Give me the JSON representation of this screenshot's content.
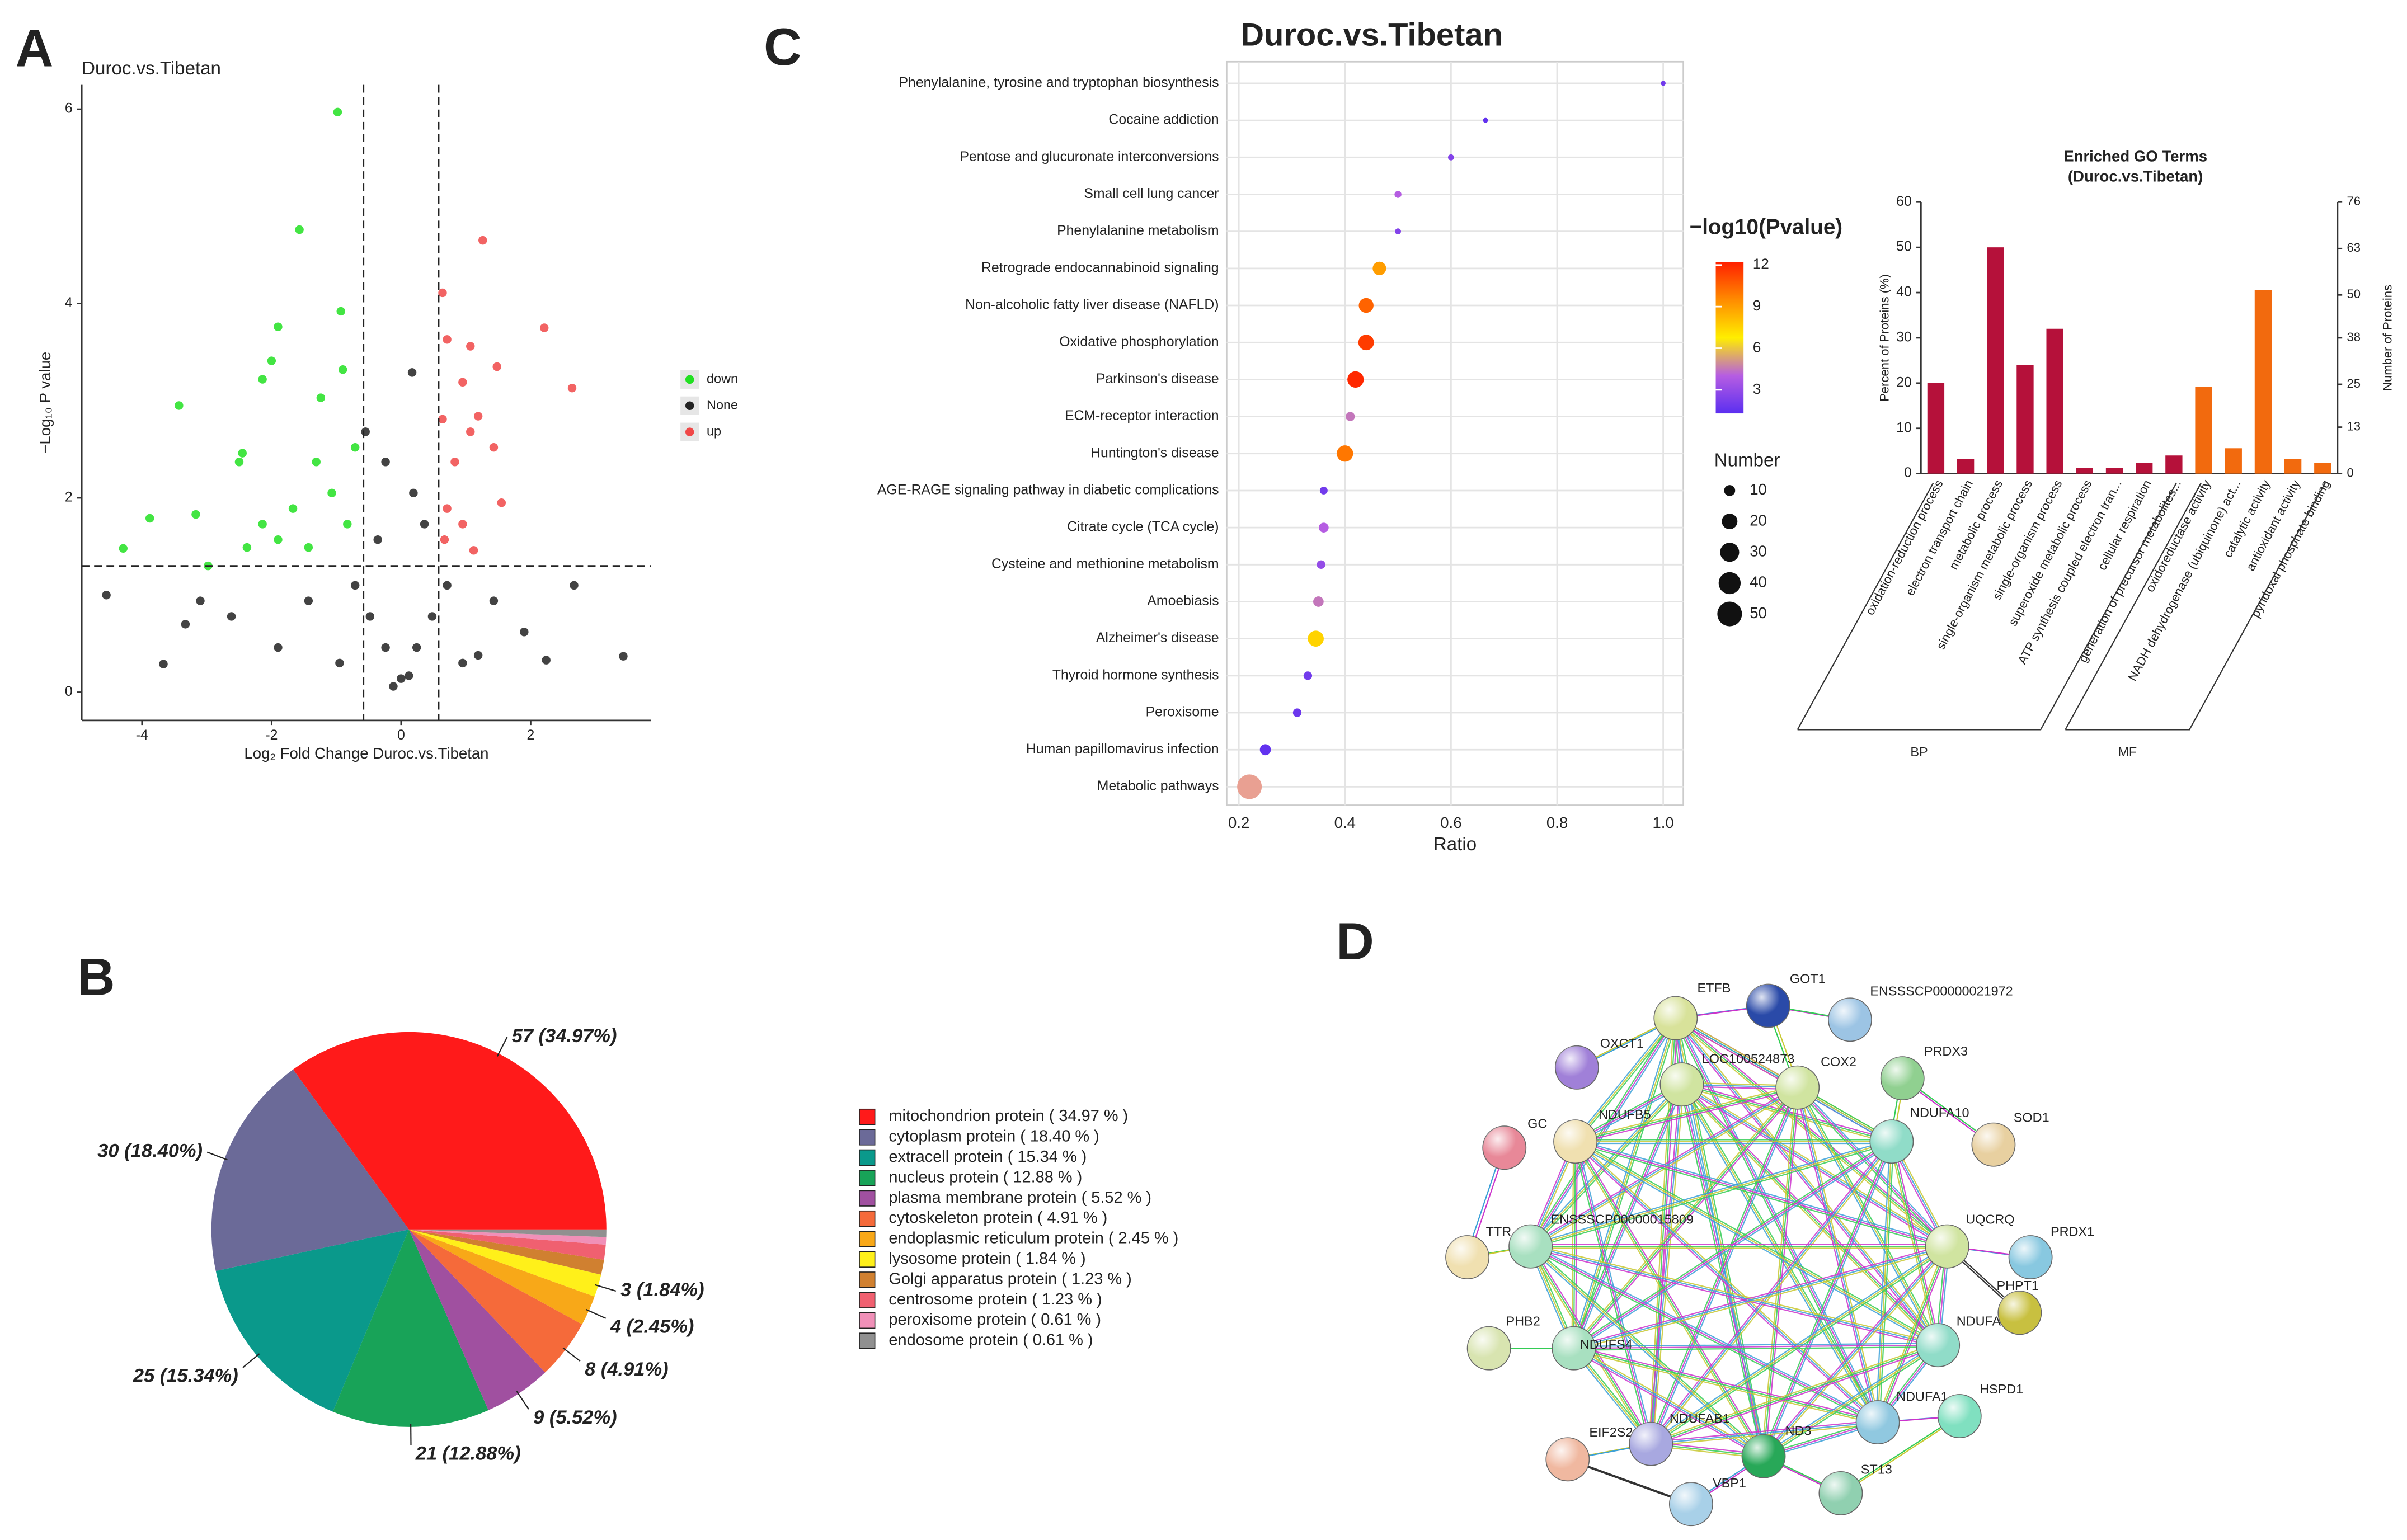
{
  "chart_data": [
    {
      "panel": "A",
      "type": "scatter",
      "title": "Duroc.vs.Tibetan",
      "x_label": "Log₂ Fold Change Duroc.vs.Tibetan",
      "y_label": "−Log₁₀ P value",
      "xlim": [
        -4.93,
        3.86
      ],
      "ylim": [
        -0.29,
        6.25
      ],
      "xticks": [
        -4,
        -2,
        0,
        2
      ],
      "yticks": [
        0,
        2,
        4,
        6
      ],
      "threshold_x": [
        -0.58,
        0.58
      ],
      "threshold_y": 1.3,
      "legend": "right",
      "series": [
        {
          "name": "down",
          "color": "#22e022",
          "x": [
            -0.98,
            -1.57,
            -1.9,
            -0.93,
            -3.43,
            -2.14,
            -2.0,
            -3.88,
            -4.29,
            -3.17,
            -2.45,
            -2.5,
            -2.98,
            -1.31,
            -0.71,
            -1.07,
            -1.67,
            -1.9,
            -1.43,
            -0.83,
            -2.14,
            -2.38,
            -1.24,
            -0.9
          ],
          "values": [
            5.97,
            4.76,
            3.76,
            3.92,
            2.95,
            3.22,
            3.41,
            1.79,
            1.48,
            1.83,
            2.46,
            2.37,
            1.3,
            2.37,
            2.52,
            2.05,
            1.89,
            1.57,
            1.49,
            1.73,
            1.73,
            1.49,
            3.03,
            3.32
          ]
        },
        {
          "name": "None",
          "color": "#222222",
          "x": [
            -4.55,
            -3.67,
            3.43,
            2.24,
            0.17,
            -0.55,
            0,
            -0.12,
            0.12,
            -0.24,
            0.24,
            -0.48,
            0.48,
            -0.71,
            0.71,
            -1.43,
            1.43,
            -2.62,
            1.9,
            -3.33,
            -1.9,
            1.19,
            -0.36,
            0.36,
            0.19,
            -0.24,
            -3.1,
            2.67,
            -0.95,
            0.95
          ],
          "values": [
            1.0,
            0.29,
            0.37,
            0.33,
            3.29,
            2.68,
            0.14,
            0.06,
            0.17,
            0.46,
            0.46,
            0.78,
            0.78,
            1.1,
            1.1,
            0.94,
            0.94,
            0.78,
            0.62,
            0.7,
            0.46,
            0.38,
            1.57,
            1.73,
            2.05,
            2.37,
            0.94,
            1.1,
            0.3,
            0.3
          ]
        },
        {
          "name": "up",
          "color": "#f04848",
          "x": [
            1.26,
            0.64,
            2.21,
            2.64,
            0.71,
            1.07,
            1.48,
            0.95,
            1.19,
            0.64,
            0.83,
            1.55,
            0.71,
            1.12,
            0.95,
            1.43,
            0.67,
            1.07
          ],
          "values": [
            4.65,
            4.11,
            3.75,
            3.13,
            3.63,
            3.56,
            3.35,
            3.19,
            2.84,
            2.81,
            2.37,
            1.95,
            1.89,
            1.46,
            1.73,
            2.52,
            1.57,
            2.68
          ]
        }
      ]
    },
    {
      "panel": "C",
      "type": "dot",
      "title": "Duroc.vs.Tibetan",
      "x_label": "Ratio",
      "categories": [
        "Phenylalanine, tyrosine and tryptophan biosynthesis",
        "Cocaine addiction",
        "Pentose and glucuronate interconversions",
        "Small cell lung cancer",
        "Phenylalanine metabolism",
        "Retrograde endocannabinoid signaling",
        "Non-alcoholic fatty liver disease (NAFLD)",
        "Oxidative phosphorylation",
        "Parkinson's disease",
        "ECM-receptor interaction",
        "Huntington's disease",
        "AGE-RAGE signaling pathway in diabetic complications",
        "Citrate cycle (TCA cycle)",
        "Cysteine and methionine metabolism",
        "Amoebiasis",
        "Alzheimer's disease",
        "Thyroid hormone synthesis",
        "Peroxisome",
        "Human papillomavirus infection",
        "Metabolic pathways"
      ],
      "values": [
        1.0,
        0.665,
        0.6,
        0.5,
        0.5,
        0.465,
        0.44,
        0.44,
        0.42,
        0.41,
        0.4,
        0.36,
        0.36,
        0.355,
        0.35,
        0.345,
        0.33,
        0.31,
        0.25,
        0.22
      ],
      "color_values": [
        2,
        1.5,
        2.5,
        4,
        2.5,
        9,
        10.5,
        11.5,
        12,
        4.5,
        10,
        2,
        4,
        3,
        4.5,
        7.5,
        2,
        1.8,
        1.5,
        13
      ],
      "size_values": [
        1,
        2,
        3,
        4,
        3,
        15,
        18,
        20,
        22,
        7,
        22,
        5,
        8,
        6,
        9,
        21,
        6,
        6,
        10,
        50
      ],
      "xlim": [
        0.177,
        1.038
      ],
      "xticks": [
        0.2,
        0.4,
        0.6,
        0.8,
        {
          "value": 1,
          "label": "1.0"
        }
      ],
      "grid": true,
      "color_label": "−log10(Pvalue)",
      "clim": [
        1.3,
        12.2
      ],
      "cticks": [
        3,
        6,
        9,
        12
      ],
      "colorscale": [
        "#5b2ff0",
        "#b65de2",
        "#ffee00",
        "#ff8c00",
        "#ff2000"
      ],
      "out_of_range_color": "#e9a092",
      "size_label": "Number",
      "size_ticks": [
        10,
        20,
        30,
        40,
        50
      ]
    },
    {
      "type": "bar",
      "title": "Enriched GO Terms",
      "subtitle": "(Duroc.vs.Tibetan)",
      "y_label": "Percent of Proteins (%)",
      "y2_label": "Number of Proteins",
      "ylim": [
        0,
        60
      ],
      "yticks": [
        0,
        10,
        20,
        30,
        40,
        50,
        60
      ],
      "y2lim": [
        0,
        76
      ],
      "y2ticks": [
        0,
        13,
        25,
        38,
        50,
        63,
        76
      ],
      "series": [
        {
          "name": "BP",
          "color": "#b5113a",
          "categories": [
            "oxidation-reduction process",
            "electron transport chain",
            "metabolic process",
            "single-organism metabolic process",
            "single-organism process",
            "superoxide metabolic process",
            "ATP synthesis coupled electron tran...",
            "cellular respiration",
            "generation of precursor metabolites..."
          ],
          "values": [
            20,
            3.2,
            50,
            24,
            32,
            1.3,
            1.3,
            2.3,
            4
          ]
        },
        {
          "name": "MF",
          "color": "#f26a0e",
          "categories": [
            "oxidoreductase activity",
            "NADH dehydrogenase (ubiquinone) act...",
            "catalytic activity",
            "antioxidant activity",
            "pyridoxal phosphate binding"
          ],
          "values": [
            19.2,
            5.6,
            40.5,
            3.2,
            2.4
          ]
        }
      ]
    },
    {
      "panel": "B",
      "type": "pie",
      "categories": [
        "mitochondrion protein ( 34.97 % )",
        "cytoplasm protein ( 18.40 % )",
        "extracell protein ( 15.34 % )",
        "nucleus protein ( 12.88 % )",
        "plasma membrane protein ( 5.52 % )",
        "cytoskeleton protein ( 4.91 % )",
        "endoplasmic reticulum protein ( 2.45 % )",
        "lysosome protein ( 1.84 % )",
        "Golgi apparatus protein ( 1.23 % )",
        "centrosome protein ( 1.23 % )",
        "peroxisome protein ( 0.61 % )",
        "endosome protein ( 0.61 % )"
      ],
      "values": [
        57,
        30,
        25,
        21,
        9,
        8,
        4,
        3,
        2,
        2,
        1,
        1
      ],
      "value_labels": [
        "57 (34.97%)",
        "30 (18.40%)",
        "25 (15.34%)",
        "21 (12.88%)",
        "9 (5.52%)",
        "8 (4.91%)",
        "4 (2.45%)",
        "3 (1.84%)",
        null,
        null,
        null,
        null
      ],
      "colors": [
        "#ff1a1a",
        "#6b6a98",
        "#0a998b",
        "#18a358",
        "#a050a0",
        "#f56a3a",
        "#f8a818",
        "#fff01a",
        "#d08030",
        "#f06070",
        "#f090b8",
        "#909090"
      ]
    }
  ],
  "network": {
    "panel": "D",
    "nodes": [
      {
        "label": "ETFB",
        "color": "#d8e29a"
      },
      {
        "label": "GOT1",
        "color": "#2a4aa8"
      },
      {
        "label": "ENSSSCP00000021972",
        "color": "#9cc4e4"
      },
      {
        "label": "OXCT1",
        "color": "#a080d8"
      },
      {
        "label": "LOC100524873",
        "color": "#d0e4a0"
      },
      {
        "label": "COX2",
        "color": "#d0e4a0"
      },
      {
        "label": "PRDX3",
        "color": "#90d090"
      },
      {
        "label": "GC",
        "color": "#e88898"
      },
      {
        "label": "NDUFB5",
        "color": "#f0e0b0"
      },
      {
        "label": "NDUFA10",
        "color": "#90dcc8"
      },
      {
        "label": "SOD1",
        "color": "#e8d0a0"
      },
      {
        "label": "TTR",
        "color": "#f0e0b0"
      },
      {
        "label": "ENSSSCP00000015809",
        "color": "#a8e0c0"
      },
      {
        "label": "UQCRQ",
        "color": "#d0e4a0"
      },
      {
        "label": "PRDX1",
        "color": "#88c8e0"
      },
      {
        "label": "PHPT1",
        "color": "#c8c040"
      },
      {
        "label": "PHB2",
        "color": "#d8e4b0"
      },
      {
        "label": "NDUFS4",
        "color": "#a8e0c0"
      },
      {
        "label": "NDUFA",
        "color": "#90dcc8"
      },
      {
        "label": "NDUFA1",
        "color": "#90c8e0"
      },
      {
        "label": "HSPD1",
        "color": "#80e0c0"
      },
      {
        "label": "EIF2S2",
        "color": "#f0b8a0"
      },
      {
        "label": "NDUFAB1",
        "color": "#a8a8e0"
      },
      {
        "label": "ND3",
        "color": "#28a858"
      },
      {
        "label": "ST13",
        "color": "#90d0b0"
      },
      {
        "label": "VBP1",
        "color": "#a8d0e8"
      }
    ]
  }
}
